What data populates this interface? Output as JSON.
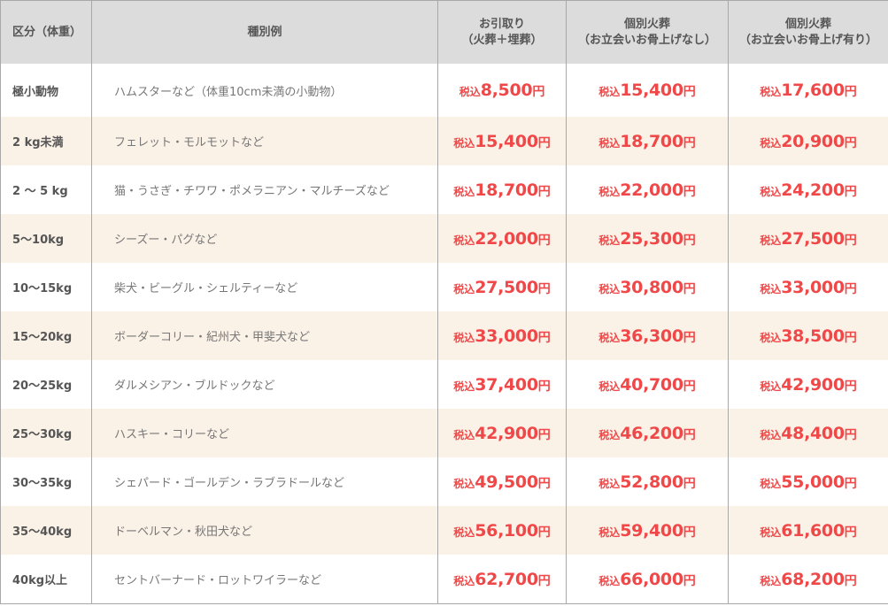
{
  "table": {
    "headers": [
      {
        "line1": "区分（体重）",
        "line2": ""
      },
      {
        "line1": "種別例",
        "line2": ""
      },
      {
        "line1": "お引取り",
        "line2": "（火葬＋埋葬）"
      },
      {
        "line1": "個別火葬",
        "line2": "（お立会いお骨上げなし）"
      },
      {
        "line1": "個別火葬",
        "line2": "（お立会いお骨上げ有り）"
      }
    ],
    "tax_label": "税込",
    "yen_label": "円",
    "accent_color": "#f04848",
    "row_alt_color": "#faf1e7",
    "header_bg_color": "#dcdcdc",
    "rows": [
      {
        "weight": "極小動物",
        "species": "ハムスターなど（体重10cm未満の小動物）",
        "pickup": "8,500",
        "individual_no_attend": "15,400",
        "individual_attend": "17,600"
      },
      {
        "weight": "2 kg未満",
        "species": "フェレット・モルモットなど",
        "pickup": "15,400",
        "individual_no_attend": "18,700",
        "individual_attend": "20,900"
      },
      {
        "weight": "2 ～ 5 kg",
        "species": "猫・うさぎ・チワワ・ポメラニアン・マルチーズなど",
        "pickup": "18,700",
        "individual_no_attend": "22,000",
        "individual_attend": "24,200"
      },
      {
        "weight": "5～10kg",
        "species": "シーズー・パグなど",
        "pickup": "22,000",
        "individual_no_attend": "25,300",
        "individual_attend": "27,500"
      },
      {
        "weight": "10～15kg",
        "species": "柴犬・ビーグル・シェルティーなど",
        "pickup": "27,500",
        "individual_no_attend": "30,800",
        "individual_attend": "33,000"
      },
      {
        "weight": "15～20kg",
        "species": "ボーダーコリー・紀州犬・甲斐犬など",
        "pickup": "33,000",
        "individual_no_attend": "36,300",
        "individual_attend": "38,500"
      },
      {
        "weight": "20～25kg",
        "species": "ダルメシアン・ブルドックなど",
        "pickup": "37,400",
        "individual_no_attend": "40,700",
        "individual_attend": "42,900"
      },
      {
        "weight": "25～30kg",
        "species": "ハスキー・コリーなど",
        "pickup": "42,900",
        "individual_no_attend": "46,200",
        "individual_attend": "48,400"
      },
      {
        "weight": "30～35kg",
        "species": "シェパード・ゴールデン・ラブラドールなど",
        "pickup": "49,500",
        "individual_no_attend": "52,800",
        "individual_attend": "55,000"
      },
      {
        "weight": "35～40kg",
        "species": "ドーベルマン・秋田犬など",
        "pickup": "56,100",
        "individual_no_attend": "59,400",
        "individual_attend": "61,600"
      },
      {
        "weight": "40kg以上",
        "species": "セントバーナード・ロットワイラーなど",
        "pickup": "62,700",
        "individual_no_attend": "66,000",
        "individual_attend": "68,200"
      }
    ]
  }
}
